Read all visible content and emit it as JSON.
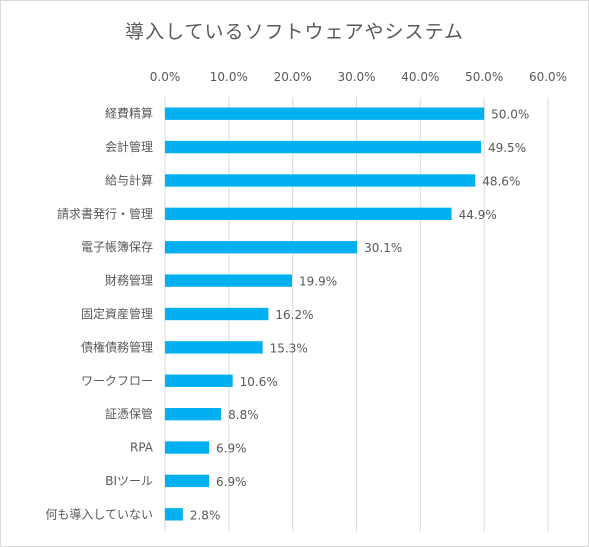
{
  "chart_data": {
    "type": "bar",
    "orientation": "horizontal",
    "title": "導入しているソフトウェアやシステム",
    "categories": [
      "経費精算",
      "会計管理",
      "給与計算",
      "請求書発行・管理",
      "電子帳簿保存",
      "財務管理",
      "固定資産管理",
      "債権債務管理",
      "ワークフロー",
      "証憑保管",
      "RPA",
      "BIツール",
      "何も導入していない"
    ],
    "values": [
      50.0,
      49.5,
      48.6,
      44.9,
      30.1,
      19.9,
      16.2,
      15.3,
      10.6,
      8.8,
      6.9,
      6.9,
      2.8
    ],
    "data_labels": [
      "50.0%",
      "49.5%",
      "48.6%",
      "44.9%",
      "30.1%",
      "19.9%",
      "16.2%",
      "15.3%",
      "10.6%",
      "8.8%",
      "6.9%",
      "6.9%",
      "2.8%"
    ],
    "xlim": [
      0,
      60
    ],
    "x_ticks": [
      0,
      10,
      20,
      30,
      40,
      50,
      60
    ],
    "x_tick_labels": [
      "0.0%",
      "10.0%",
      "20.0%",
      "30.0%",
      "40.0%",
      "50.0%",
      "60.0%"
    ],
    "x_axis_position": "top",
    "grid": true,
    "legend": "none",
    "bar_color": "#00b0f0",
    "grid_color": "#d9d9d9",
    "text_color": "#595959"
  }
}
